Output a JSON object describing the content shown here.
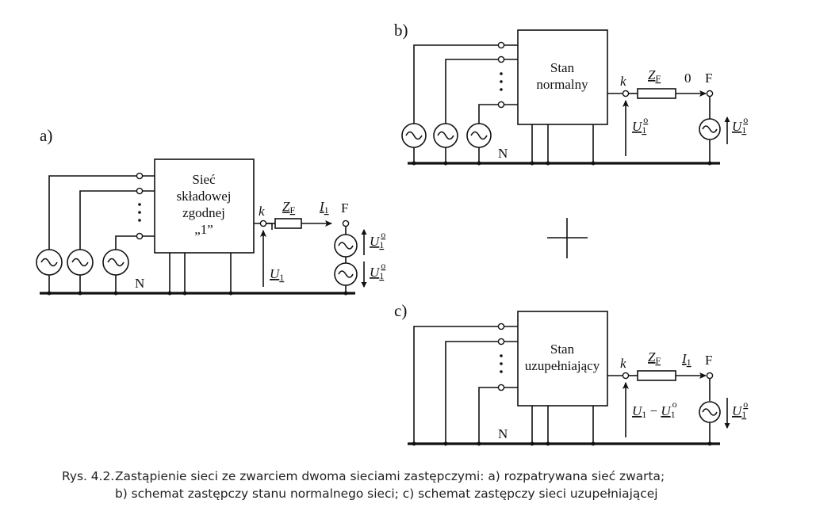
{
  "panels": {
    "a": {
      "label": "a)",
      "block": [
        "Sieć",
        "składowej",
        "zgodnej",
        "„1”"
      ],
      "k": "k",
      "zf": "Z",
      "zf_sub": "F",
      "current": "I",
      "current_sub": "1",
      "f": "F",
      "voltage": "U",
      "voltage_sub": "1",
      "source_voltage": "U",
      "source_sub": "1",
      "source_sup": "o",
      "n": "N"
    },
    "b": {
      "label": "b)",
      "block": [
        "Stan",
        "normalny"
      ],
      "k": "k",
      "zf": "Z",
      "zf_sub": "F",
      "current": "0",
      "f": "F",
      "voltage": "U",
      "voltage_sub": "1",
      "voltage_sup": "o",
      "source_voltage": "U",
      "source_sub": "1",
      "source_sup": "o",
      "n": "N"
    },
    "c": {
      "label": "c)",
      "block": [
        "Stan",
        "uzupełniający"
      ],
      "k": "k",
      "zf": "Z",
      "zf_sub": "F",
      "current": "I",
      "current_sub": "1",
      "f": "F",
      "voltage": "U",
      "voltage_sub": "1",
      "voltage_minus": " − ",
      "voltage2": "U",
      "voltage2_sub": "1",
      "voltage2_sup": "o",
      "source_voltage": "U",
      "source_sub": "1",
      "source_sup": "o",
      "n": "N"
    }
  },
  "plus": "+",
  "caption": {
    "number": "Rys. 4.2.",
    "line1": "Zastąpienie sieci ze zwarciem dwoma sieciami zastępczymi: a) rozpatrywana sieć zwarta;",
    "line2": "b) schemat zastępczy stanu normalnego sieci; c) schemat zastępczy sieci uzupełniającej"
  }
}
